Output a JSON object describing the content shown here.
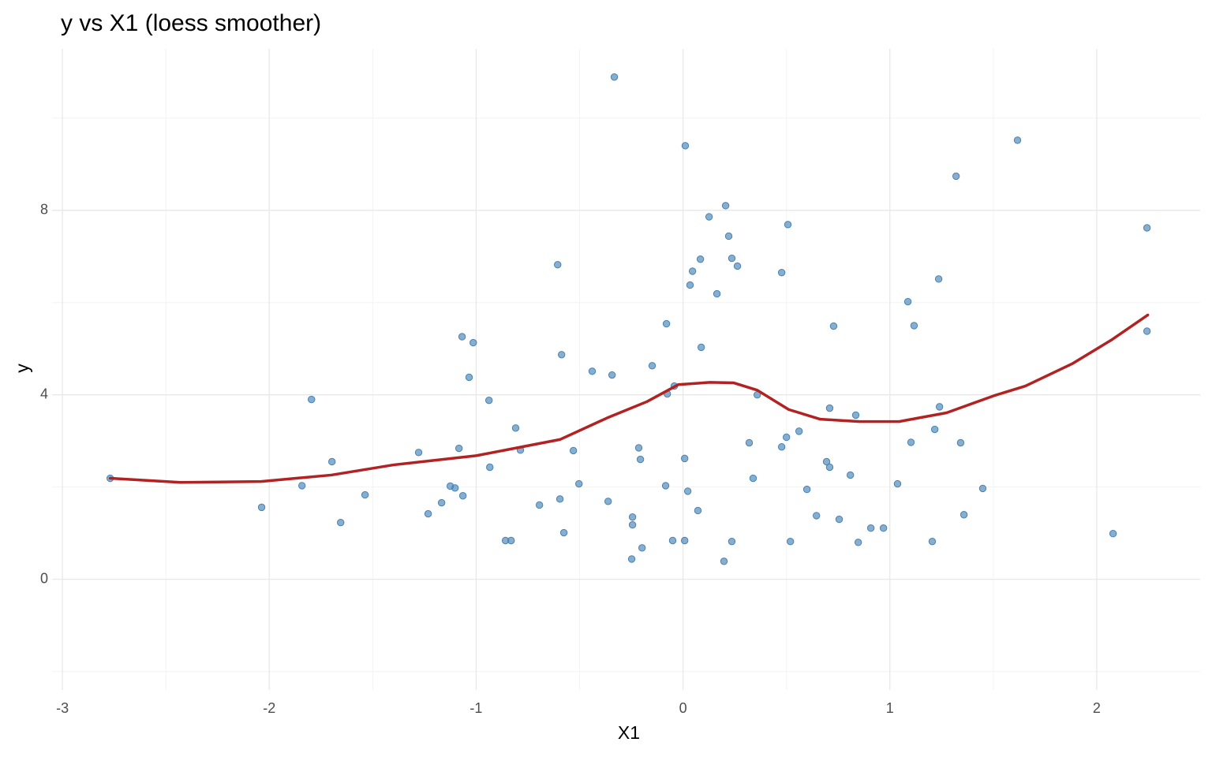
{
  "chart_data": {
    "type": "scatter",
    "title": "y vs X1 (loess smoother)",
    "x_label": "X1",
    "y_label": "y",
    "xlim": [
      -3.05,
      2.5
    ],
    "ylim": [
      -2.4,
      11.5
    ],
    "xticks": [
      -3,
      -2,
      -1,
      0,
      1,
      2
    ],
    "yticks": [
      0,
      4,
      8
    ],
    "x_minor_grid": [
      -2.5,
      -1.5,
      -0.5,
      0.5,
      1.5
    ],
    "y_minor_grid": [
      -2,
      2,
      6,
      10
    ],
    "grid": true,
    "points": {
      "color": "#4682b4",
      "x": [
        -2.769,
        -2.037,
        -1.842,
        -1.796,
        -1.697,
        -1.655,
        -1.537,
        -1.278,
        -1.232,
        -1.167,
        -1.125,
        -1.102,
        -1.083,
        -1.068,
        -1.064,
        -1.034,
        -1.014,
        -0.938,
        -0.934,
        -0.858,
        -0.831,
        -0.809,
        -0.786,
        -0.694,
        -0.606,
        -0.595,
        -0.587,
        -0.576,
        -0.53,
        -0.503,
        -0.439,
        -0.362,
        -0.343,
        -0.332,
        -0.248,
        -0.244,
        -0.244,
        -0.214,
        -0.206,
        -0.198,
        -0.149,
        -0.084,
        -0.08,
        -0.076,
        -0.05,
        -0.042,
        0.008,
        0.008,
        0.011,
        0.023,
        0.034,
        0.046,
        0.072,
        0.084,
        0.088,
        0.126,
        0.164,
        0.198,
        0.206,
        0.221,
        0.236,
        0.236,
        0.263,
        0.32,
        0.339,
        0.359,
        0.477,
        0.477,
        0.5,
        0.507,
        0.519,
        0.561,
        0.599,
        0.645,
        0.694,
        0.709,
        0.709,
        0.728,
        0.755,
        0.809,
        0.835,
        0.847,
        0.908,
        0.969,
        1.037,
        1.087,
        1.102,
        1.117,
        1.205,
        1.217,
        1.236,
        1.24,
        1.32,
        1.342,
        1.358,
        1.449,
        1.617,
        2.079,
        2.243,
        2.243
      ],
      "y": [
        2.19,
        1.56,
        2.03,
        3.9,
        2.55,
        1.23,
        1.83,
        2.75,
        1.42,
        1.66,
        2.02,
        1.98,
        2.84,
        5.26,
        1.81,
        4.38,
        5.13,
        3.88,
        2.43,
        0.84,
        0.84,
        3.28,
        2.8,
        1.61,
        6.82,
        1.74,
        4.87,
        1.01,
        2.79,
        2.07,
        4.51,
        1.69,
        4.43,
        10.89,
        0.44,
        1.35,
        1.18,
        2.85,
        2.6,
        0.68,
        4.63,
        2.03,
        5.54,
        4.02,
        0.84,
        4.19,
        0.84,
        2.62,
        9.4,
        1.91,
        6.38,
        6.68,
        1.49,
        6.94,
        5.03,
        7.86,
        6.19,
        0.39,
        8.1,
        7.44,
        6.96,
        0.82,
        6.79,
        2.96,
        2.19,
        4.0,
        2.87,
        6.65,
        3.08,
        7.69,
        0.82,
        3.21,
        1.95,
        1.38,
        2.55,
        3.71,
        2.43,
        5.49,
        1.3,
        2.26,
        3.56,
        0.8,
        1.11,
        1.11,
        2.07,
        6.02,
        2.97,
        5.5,
        0.82,
        3.25,
        6.51,
        3.74,
        8.74,
        2.96,
        1.4,
        1.97,
        9.52,
        0.99,
        7.62,
        5.38
      ]
    },
    "smoother": {
      "color": "#b22222",
      "x": [
        -2.769,
        -2.43,
        -2.04,
        -1.7,
        -1.4,
        -1.0,
        -0.595,
        -0.366,
        -0.175,
        -0.023,
        0.13,
        0.244,
        0.359,
        0.511,
        0.664,
        0.854,
        1.045,
        1.274,
        1.503,
        1.655,
        1.884,
        2.075,
        2.247
      ],
      "y": [
        2.19,
        2.1,
        2.12,
        2.26,
        2.48,
        2.68,
        3.03,
        3.5,
        3.85,
        4.22,
        4.27,
        4.26,
        4.1,
        3.68,
        3.47,
        3.42,
        3.42,
        3.61,
        3.98,
        4.19,
        4.68,
        5.2,
        5.73
      ]
    }
  }
}
